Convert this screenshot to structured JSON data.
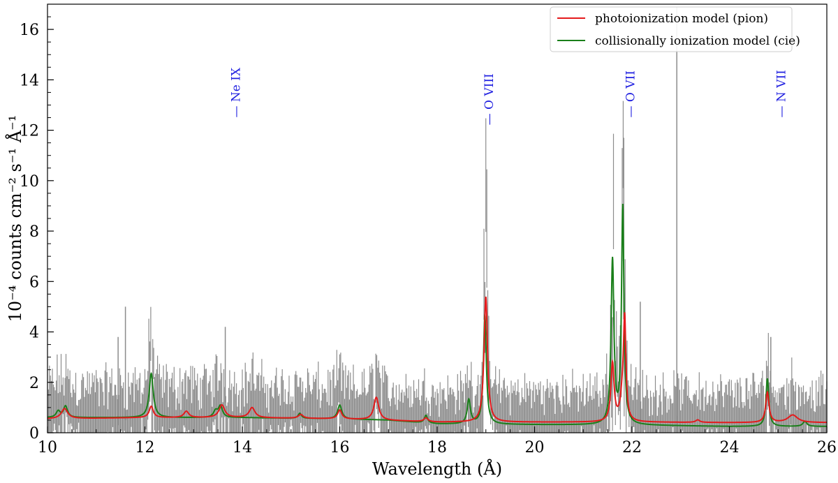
{
  "chart_data": {
    "type": "line",
    "xlabel": "Wavelength (Å)",
    "ylabel": "10⁻⁴ counts cm⁻² s⁻¹ Å⁻¹",
    "xlim": [
      10,
      26
    ],
    "ylim": [
      0,
      17
    ],
    "x_ticks": [
      10,
      12,
      14,
      16,
      18,
      20,
      22,
      24,
      26
    ],
    "y_ticks": [
      0,
      2,
      4,
      6,
      8,
      10,
      12,
      14,
      16
    ],
    "x_tick_labels": [
      "10",
      "12",
      "14",
      "16",
      "18",
      "20",
      "22",
      "24",
      "26"
    ],
    "y_tick_labels": [
      "0",
      "2",
      "4",
      "6",
      "8",
      "10",
      "12",
      "14",
      "16"
    ],
    "grid": false,
    "legend_position": "top-right",
    "colors": {
      "pion": "#e41a1c",
      "cie": "#1a7f1a",
      "data": "#8c8c8c",
      "line_labels": "#1f1fe0"
    },
    "line_labels": [
      {
        "text": "— Ne IX",
        "x": 13.95,
        "y": 12.5
      },
      {
        "text": "— O VIII",
        "x": 19.15,
        "y": 12.2
      },
      {
        "text": "— O VII",
        "x": 22.05,
        "y": 12.5
      },
      {
        "text": "— N VII",
        "x": 25.15,
        "y": 12.5
      }
    ],
    "series": [
      {
        "name": "photoionization model (pion)",
        "baseline": [
          [
            10,
            0.55
          ],
          [
            12,
            0.6
          ],
          [
            14,
            0.6
          ],
          [
            16,
            0.55
          ],
          [
            18,
            0.42
          ],
          [
            20,
            0.42
          ],
          [
            22,
            0.42
          ],
          [
            24,
            0.4
          ],
          [
            26,
            0.4
          ]
        ],
        "peaks": [
          [
            10.35,
            0.4,
            0.08
          ],
          [
            12.13,
            0.45,
            0.05
          ],
          [
            12.85,
            0.25,
            0.06
          ],
          [
            13.58,
            0.5,
            0.07
          ],
          [
            14.2,
            0.4,
            0.07
          ],
          [
            15.2,
            0.15,
            0.06
          ],
          [
            16.0,
            0.35,
            0.05
          ],
          [
            16.75,
            0.9,
            0.06
          ],
          [
            17.77,
            0.15,
            0.05
          ],
          [
            18.96,
            0.35,
            0.04
          ],
          [
            19.0,
            4.8,
            0.04
          ],
          [
            21.6,
            2.3,
            0.04
          ],
          [
            21.8,
            0.8,
            0.05
          ],
          [
            21.85,
            3.9,
            0.03
          ],
          [
            23.35,
            0.1,
            0.05
          ],
          [
            24.78,
            1.2,
            0.04
          ],
          [
            25.3,
            0.3,
            0.12
          ]
        ]
      },
      {
        "name": "collisionally ionization model (cie)",
        "baseline": [
          [
            10,
            0.6
          ],
          [
            12,
            0.6
          ],
          [
            14,
            0.6
          ],
          [
            16,
            0.55
          ],
          [
            17,
            0.5
          ],
          [
            18,
            0.35
          ],
          [
            20,
            0.32
          ],
          [
            22,
            0.3
          ],
          [
            24,
            0.25
          ],
          [
            26,
            0.25
          ]
        ],
        "peaks": [
          [
            10.22,
            0.25,
            0.05
          ],
          [
            10.37,
            0.45,
            0.05
          ],
          [
            12.13,
            1.75,
            0.05
          ],
          [
            13.45,
            0.25,
            0.05
          ],
          [
            13.55,
            0.45,
            0.05
          ],
          [
            15.18,
            0.2,
            0.04
          ],
          [
            16.0,
            0.55,
            0.05
          ],
          [
            17.77,
            0.3,
            0.04
          ],
          [
            18.65,
            0.95,
            0.04
          ],
          [
            18.98,
            4.35,
            0.035
          ],
          [
            21.6,
            6.5,
            0.035
          ],
          [
            21.81,
            8.6,
            0.03
          ],
          [
            24.78,
            1.9,
            0.035
          ],
          [
            25.55,
            0.2,
            0.05
          ]
        ]
      }
    ]
  }
}
